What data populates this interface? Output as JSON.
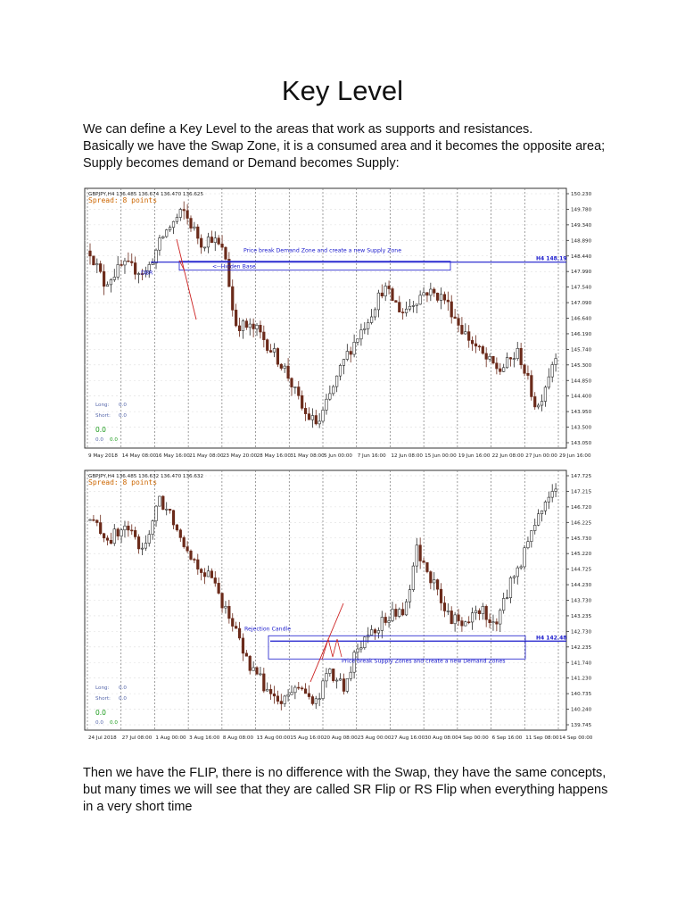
{
  "page": {
    "title": "Key  Level",
    "intro": [
      "We can define a Key Level to the areas that work as supports and resistances.",
      "Basically we have the Swap Zone, it is a consumed area and it becomes the opposite area;",
      "Supply becomes demand or Demand becomes Supply:"
    ],
    "outro": [
      "Then we have the FLIP, there is no difference with the Swap, they have the same concepts,",
      "but many times we will see that they are called SR Flip or RS Flip when everything happens",
      "in a very short time"
    ]
  },
  "colors": {
    "accent_line": "#1a1acc",
    "annotation_text": "#1a1acc",
    "spread_text": "#cc6600",
    "stat_green": "#1a9a1a",
    "red_line": "#cc2222"
  },
  "chart_data": [
    {
      "type": "candlestick",
      "symbol_header": "GBPJPY,H4  136.485 136.674 136.470 136.625",
      "spread": "Spread: 8 points",
      "x_ticks": [
        "9 May 2018",
        "14 May 08:00",
        "16 May 16:00",
        "21 May 08:00",
        "23 May 20:00",
        "28 May 16:00",
        "31 May 08:00",
        "5 Jun 00:00",
        "7 Jun 16:00",
        "12 Jun 08:00",
        "15 Jun 00:00",
        "19 Jun 16:00",
        "22 Jun 08:00",
        "27 Jun 00:00",
        "29 Jun 16:00"
      ],
      "y_ticks": [
        "150.230",
        "149.780",
        "149.340",
        "148.890",
        "148.440",
        "147.990",
        "147.540",
        "147.090",
        "146.640",
        "146.190",
        "145.740",
        "145.300",
        "144.850",
        "144.400",
        "143.950",
        "143.500",
        "143.050"
      ],
      "ylim": [
        143.05,
        150.23
      ],
      "price_line_label": "H4 148.19",
      "price_line_value": 148.19,
      "annotations": {
        "zone_label": "Price break Demand Zone and create a new Supply Zone",
        "hidden_base": "<--Hidden Base",
        "dbr": "DBR"
      },
      "stats": {
        "long_label": "Long:",
        "long_value": "0.0",
        "short_label": "Short:",
        "short_value": "0.0",
        "total": "0.0",
        "sub_a": "0.0",
        "sub_b": "0.0"
      }
    },
    {
      "type": "candlestick",
      "symbol_header": "GBPJPY,H4  136.485 136.632 136.470 136.632",
      "spread": "Spread: 8 points",
      "x_ticks": [
        "24 Jul 2018",
        "27 Jul 08:00",
        "1 Aug 00:00",
        "3 Aug 16:00",
        "8 Aug 08:00",
        "13 Aug 00:00",
        "15 Aug 16:00",
        "20 Aug 08:00",
        "23 Aug 00:00",
        "27 Aug 16:00",
        "30 Aug 08:00",
        "4 Sep 00:00",
        "6 Sep 16:00",
        "11 Sep 08:00",
        "14 Sep 00:00"
      ],
      "y_ticks": [
        "147.725",
        "147.215",
        "146.720",
        "146.225",
        "145.730",
        "145.220",
        "144.725",
        "144.230",
        "143.730",
        "143.235",
        "142.730",
        "142.235",
        "141.740",
        "141.230",
        "140.735",
        "140.240",
        "139.745"
      ],
      "ylim": [
        139.745,
        147.725
      ],
      "price_line_label": "H4 142.48",
      "price_line_value": 142.48,
      "annotations": {
        "rejection": "Rejection Candle",
        "zone_label": "Price break Supply Zones and create a new Demand Zones"
      },
      "stats": {
        "long_label": "Long:",
        "long_value": "0.0",
        "short_label": "Short:",
        "short_value": "0.0",
        "total": "0.0",
        "sub_a": "0.0",
        "sub_b": "0.0"
      }
    }
  ]
}
